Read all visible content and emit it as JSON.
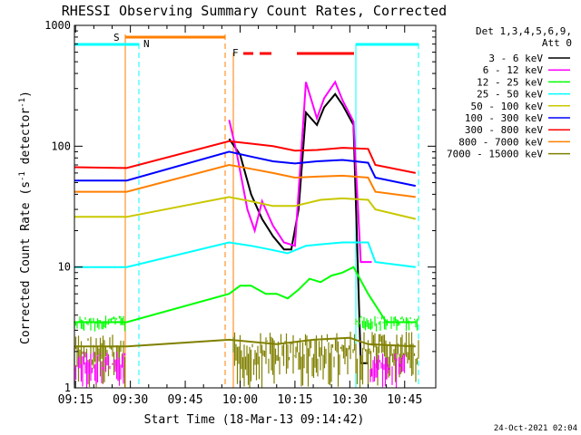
{
  "chart_data": {
    "type": "line",
    "title": "RHESSI Observing Summary Count Rates, Corrected",
    "xlabel": "Start Time (18-Mar-13 09:14:42)",
    "ylabel": "Corrected Count Rate (s",
    "ylabel_sup1": "-1",
    "ylabel_mid": " detector",
    "ylabel_sup2": "-1",
    "ylabel_end": ")",
    "yscale": "log",
    "ylim": [
      1,
      1000
    ],
    "xlim": [
      "09:14:42",
      "10:53:30"
    ],
    "x_ticks": [
      "09:15",
      "09:30",
      "09:45",
      "10:00",
      "10:15",
      "10:30",
      "10:45"
    ],
    "y_ticks": [
      "1",
      "10",
      "100",
      "1000"
    ],
    "legend_header": [
      "Det 1,3,4,5,6,9,",
      "Att 0"
    ],
    "legend_position": "right",
    "timestamp": "24-Oct-2021 02:04",
    "annotations": [
      {
        "label": "S",
        "color": "#ff7f00"
      },
      {
        "label": "N",
        "color": "#00ffff"
      },
      {
        "label": "F",
        "color": "#ff0000"
      }
    ],
    "series": [
      {
        "name": "3 - 6 keV",
        "color": "#000000",
        "points": [
          [
            "09:57",
            115
          ],
          [
            "10:00",
            85
          ],
          [
            "10:03",
            40
          ],
          [
            "10:06",
            25
          ],
          [
            "10:09",
            18
          ],
          [
            "10:12",
            14
          ],
          [
            "10:14",
            14
          ],
          [
            "10:16",
            30
          ],
          [
            "10:18",
            190
          ],
          [
            "10:21",
            150
          ],
          [
            "10:23",
            210
          ],
          [
            "10:26",
            270
          ],
          [
            "10:28",
            220
          ],
          [
            "10:31",
            150
          ],
          [
            "10:33",
            1.6
          ],
          [
            "10:35",
            1.6
          ]
        ]
      },
      {
        "name": "6 - 12 keV",
        "color": "#ff00ff",
        "points": [
          [
            "09:57",
            165
          ],
          [
            "09:59",
            90
          ],
          [
            "10:02",
            30
          ],
          [
            "10:04",
            20
          ],
          [
            "10:06",
            35
          ],
          [
            "10:09",
            22
          ],
          [
            "10:12",
            16
          ],
          [
            "10:15",
            15
          ],
          [
            "10:18",
            340
          ],
          [
            "10:21",
            170
          ],
          [
            "10:23",
            250
          ],
          [
            "10:26",
            340
          ],
          [
            "10:28",
            240
          ],
          [
            "10:31",
            160
          ],
          [
            "10:33",
            11
          ],
          [
            "10:35",
            11
          ],
          [
            "10:36",
            11
          ]
        ]
      },
      {
        "name": "12 - 25 keV",
        "color": "#00ff00",
        "points": [
          [
            "09:14:42",
            3.5
          ],
          [
            "09:29",
            3.5
          ],
          [
            "09:57",
            6
          ],
          [
            "10:00",
            7
          ],
          [
            "10:03",
            7
          ],
          [
            "10:07",
            6
          ],
          [
            "10:10",
            6
          ],
          [
            "10:13",
            5.5
          ],
          [
            "10:16",
            6.5
          ],
          [
            "10:19",
            8
          ],
          [
            "10:22",
            7.5
          ],
          [
            "10:25",
            8.5
          ],
          [
            "10:28",
            9
          ],
          [
            "10:31",
            10
          ],
          [
            "10:35",
            6
          ],
          [
            "10:40",
            3.5
          ],
          [
            "10:48",
            3.5
          ]
        ]
      },
      {
        "name": "25 - 50 keV",
        "color": "#00ffff",
        "points": [
          [
            "09:14:42",
            10
          ],
          [
            "09:29",
            10
          ],
          [
            "09:57",
            16
          ],
          [
            "10:03",
            15
          ],
          [
            "10:08",
            14
          ],
          [
            "10:13",
            13
          ],
          [
            "10:18",
            15
          ],
          [
            "10:23",
            15.5
          ],
          [
            "10:28",
            16
          ],
          [
            "10:35",
            16
          ],
          [
            "10:37",
            11
          ],
          [
            "10:48",
            10
          ]
        ]
      },
      {
        "name": "50 - 100 keV",
        "color": "#c8c800",
        "points": [
          [
            "09:14:42",
            26
          ],
          [
            "09:29",
            26
          ],
          [
            "09:57",
            38
          ],
          [
            "10:03",
            35
          ],
          [
            "10:09",
            32
          ],
          [
            "10:15",
            32
          ],
          [
            "10:22",
            36
          ],
          [
            "10:28",
            37
          ],
          [
            "10:35",
            36
          ],
          [
            "10:37",
            30
          ],
          [
            "10:48",
            25
          ]
        ]
      },
      {
        "name": "100 - 300 keV",
        "color": "#0000ff",
        "points": [
          [
            "09:14:42",
            52
          ],
          [
            "09:29",
            52
          ],
          [
            "09:57",
            90
          ],
          [
            "10:03",
            82
          ],
          [
            "10:09",
            75
          ],
          [
            "10:15",
            72
          ],
          [
            "10:21",
            75
          ],
          [
            "10:28",
            77
          ],
          [
            "10:35",
            73
          ],
          [
            "10:37",
            55
          ],
          [
            "10:48",
            47
          ]
        ]
      },
      {
        "name": "300 - 800 keV",
        "color": "#ff0000",
        "points": [
          [
            "09:14:42",
            67
          ],
          [
            "09:29",
            66
          ],
          [
            "09:57",
            110
          ],
          [
            "10:03",
            105
          ],
          [
            "10:09",
            100
          ],
          [
            "10:15",
            92
          ],
          [
            "10:21",
            93
          ],
          [
            "10:28",
            97
          ],
          [
            "10:35",
            95
          ],
          [
            "10:37",
            70
          ],
          [
            "10:48",
            60
          ]
        ]
      },
      {
        "name": "800 - 7000 keV",
        "color": "#ff7f00",
        "points": [
          [
            "09:14:42",
            42
          ],
          [
            "09:29",
            42
          ],
          [
            "09:57",
            70
          ],
          [
            "10:03",
            65
          ],
          [
            "10:09",
            60
          ],
          [
            "10:15",
            55
          ],
          [
            "10:21",
            56
          ],
          [
            "10:28",
            57
          ],
          [
            "10:35",
            55
          ],
          [
            "10:37",
            42
          ],
          [
            "10:48",
            38
          ]
        ]
      },
      {
        "name": "7000 - 15000 keV",
        "color": "#808000",
        "points": [
          [
            "09:14:42",
            2.2
          ],
          [
            "09:29",
            2.2
          ],
          [
            "09:57",
            2.5
          ],
          [
            "10:10",
            2.3
          ],
          [
            "10:20",
            2.5
          ],
          [
            "10:30",
            2.6
          ],
          [
            "10:35",
            2.3
          ],
          [
            "10:48",
            2.2
          ]
        ]
      }
    ]
  }
}
